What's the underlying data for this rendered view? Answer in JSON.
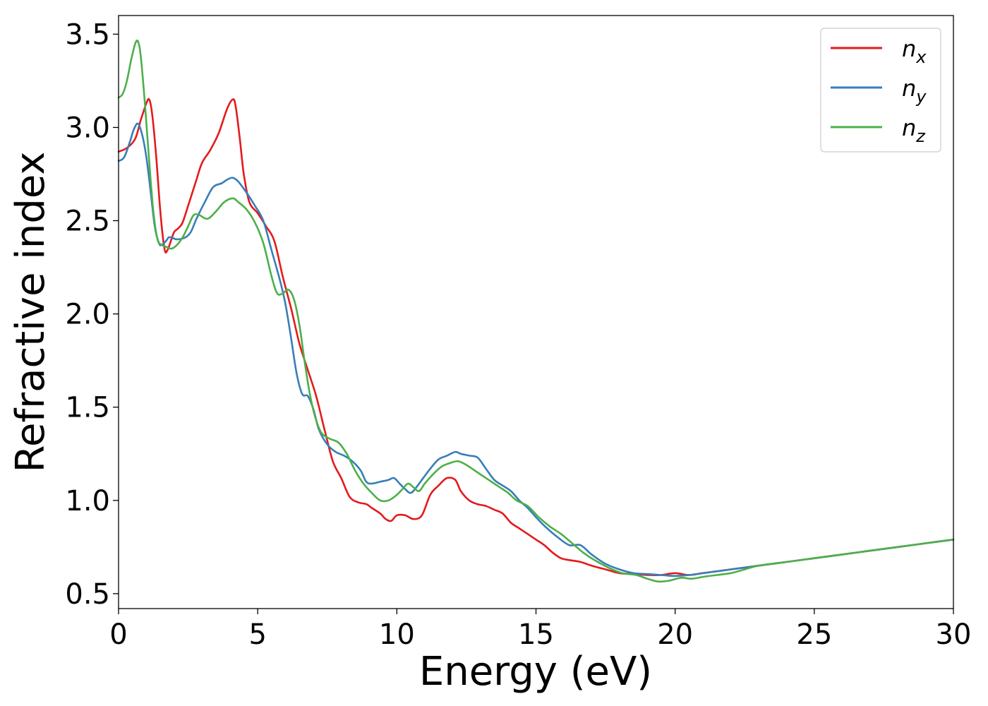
{
  "chart_data": {
    "type": "line",
    "xlabel": "Energy (eV)",
    "ylabel": "Refractive index",
    "xlim": [
      0,
      30
    ],
    "ylim": [
      0.42,
      3.6
    ],
    "grid": false,
    "legend_position": "top-right",
    "x_ticks": [
      "0",
      "5",
      "10",
      "15",
      "20",
      "25",
      "30"
    ],
    "y_ticks": [
      "0.5",
      "1.0",
      "1.5",
      "2.0",
      "2.5",
      "3.0",
      "3.5"
    ],
    "series": [
      {
        "name": "n_x",
        "label_base": "n",
        "label_sub": "x",
        "color": "#e41a1c",
        "x": [
          0,
          0.3,
          0.6,
          0.8,
          1.0,
          1.1,
          1.2,
          1.35,
          1.5,
          1.65,
          1.75,
          1.9,
          2.0,
          2.15,
          2.3,
          2.5,
          2.8,
          3.0,
          3.3,
          3.6,
          3.9,
          4.1,
          4.2,
          4.35,
          4.5,
          4.7,
          5.0,
          5.3,
          5.6,
          5.9,
          6.2,
          6.5,
          6.8,
          7.1,
          7.4,
          7.7,
          8.0,
          8.3,
          8.6,
          8.9,
          9.1,
          9.4,
          9.6,
          9.8,
          10.0,
          10.3,
          10.6,
          10.9,
          11.2,
          11.5,
          11.8,
          12.1,
          12.3,
          12.6,
          12.9,
          13.2,
          13.5,
          13.8,
          14.1,
          14.4,
          14.7,
          15.0,
          15.3,
          15.6,
          15.9,
          16.2,
          16.6,
          17.0,
          17.5,
          18.0,
          18.5,
          19.0,
          19.5,
          20.0,
          20.5,
          21.0,
          21.5,
          22.0,
          22.5,
          23.0,
          24.0,
          25.0,
          26.0,
          27.0,
          28.0,
          29.0,
          30.0
        ],
        "y": [
          2.87,
          2.89,
          2.94,
          3.04,
          3.13,
          3.15,
          3.08,
          2.85,
          2.55,
          2.35,
          2.34,
          2.4,
          2.44,
          2.46,
          2.49,
          2.58,
          2.72,
          2.81,
          2.88,
          2.97,
          3.1,
          3.15,
          3.12,
          2.95,
          2.75,
          2.6,
          2.54,
          2.47,
          2.39,
          2.2,
          2.03,
          1.84,
          1.7,
          1.56,
          1.38,
          1.21,
          1.12,
          1.02,
          0.99,
          0.98,
          0.96,
          0.93,
          0.9,
          0.89,
          0.92,
          0.92,
          0.9,
          0.92,
          1.03,
          1.08,
          1.12,
          1.11,
          1.05,
          1.0,
          0.98,
          0.97,
          0.95,
          0.93,
          0.88,
          0.85,
          0.82,
          0.79,
          0.76,
          0.72,
          0.69,
          0.68,
          0.67,
          0.65,
          0.63,
          0.61,
          0.605,
          0.6,
          0.6,
          0.61,
          0.6,
          0.61,
          0.62,
          0.63,
          0.64,
          0.65,
          0.67,
          0.69,
          0.71,
          0.73,
          0.75,
          0.77,
          0.79
        ]
      },
      {
        "name": "n_y",
        "label_base": "n",
        "label_sub": "y",
        "color": "#377eb8",
        "x": [
          0,
          0.2,
          0.4,
          0.55,
          0.7,
          0.85,
          1.0,
          1.15,
          1.3,
          1.45,
          1.55,
          1.7,
          1.8,
          1.9,
          2.1,
          2.4,
          2.6,
          2.8,
          3.1,
          3.4,
          3.7,
          3.9,
          4.1,
          4.3,
          4.6,
          4.9,
          5.2,
          5.5,
          5.8,
          6.0,
          6.2,
          6.4,
          6.6,
          6.8,
          7.0,
          7.2,
          7.5,
          7.8,
          8.1,
          8.4,
          8.7,
          8.9,
          9.1,
          9.4,
          9.7,
          9.9,
          10.1,
          10.3,
          10.5,
          10.7,
          10.9,
          11.2,
          11.5,
          11.8,
          12.1,
          12.3,
          12.6,
          12.9,
          13.2,
          13.5,
          13.8,
          14.1,
          14.4,
          14.7,
          15.0,
          15.4,
          15.8,
          16.2,
          16.6,
          17.0,
          17.5,
          18.0,
          18.5,
          19.0,
          19.5,
          20.0,
          20.5,
          21.0,
          21.5,
          22.0,
          22.5,
          23.0,
          24.0,
          25.0,
          26.0,
          27.0,
          28.0,
          29.0,
          30.0
        ],
        "y": [
          2.82,
          2.84,
          2.92,
          2.99,
          3.02,
          2.96,
          2.84,
          2.66,
          2.47,
          2.38,
          2.37,
          2.39,
          2.41,
          2.41,
          2.4,
          2.41,
          2.44,
          2.51,
          2.6,
          2.68,
          2.7,
          2.72,
          2.73,
          2.71,
          2.65,
          2.58,
          2.5,
          2.34,
          2.18,
          2.05,
          1.87,
          1.68,
          1.57,
          1.56,
          1.49,
          1.38,
          1.3,
          1.26,
          1.24,
          1.21,
          1.16,
          1.1,
          1.09,
          1.1,
          1.11,
          1.12,
          1.09,
          1.06,
          1.04,
          1.07,
          1.11,
          1.17,
          1.22,
          1.24,
          1.26,
          1.25,
          1.24,
          1.23,
          1.17,
          1.11,
          1.08,
          1.05,
          1.0,
          0.96,
          0.91,
          0.85,
          0.8,
          0.76,
          0.76,
          0.71,
          0.66,
          0.63,
          0.61,
          0.605,
          0.6,
          0.595,
          0.6,
          0.61,
          0.62,
          0.63,
          0.64,
          0.65,
          0.67,
          0.69,
          0.71,
          0.73,
          0.75,
          0.77,
          0.79
        ]
      },
      {
        "name": "n_z",
        "label_base": "n",
        "label_sub": "z",
        "color": "#4daf4a",
        "x": [
          0,
          0.15,
          0.3,
          0.45,
          0.6,
          0.7,
          0.8,
          0.95,
          1.1,
          1.25,
          1.4,
          1.55,
          1.7,
          1.9,
          2.1,
          2.3,
          2.5,
          2.7,
          2.9,
          3.2,
          3.5,
          3.8,
          4.1,
          4.3,
          4.6,
          4.9,
          5.2,
          5.5,
          5.7,
          5.9,
          6.1,
          6.3,
          6.5,
          6.7,
          6.9,
          7.1,
          7.3,
          7.6,
          7.9,
          8.2,
          8.5,
          8.8,
          9.1,
          9.4,
          9.7,
          10.0,
          10.2,
          10.4,
          10.6,
          10.8,
          11.0,
          11.3,
          11.6,
          11.9,
          12.2,
          12.5,
          12.8,
          13.1,
          13.4,
          13.7,
          14.0,
          14.3,
          14.7,
          15.1,
          15.5,
          15.9,
          16.3,
          16.7,
          17.1,
          17.6,
          18.1,
          18.6,
          19.0,
          19.4,
          19.8,
          20.2,
          20.6,
          21.0,
          21.5,
          22.0,
          22.5,
          23.0,
          24.0,
          25.0,
          26.0,
          27.0,
          28.0,
          29.0,
          30.0
        ],
        "y": [
          3.16,
          3.18,
          3.25,
          3.36,
          3.45,
          3.46,
          3.38,
          3.12,
          2.82,
          2.55,
          2.4,
          2.37,
          2.36,
          2.35,
          2.37,
          2.41,
          2.47,
          2.53,
          2.53,
          2.51,
          2.55,
          2.6,
          2.62,
          2.6,
          2.56,
          2.49,
          2.38,
          2.2,
          2.11,
          2.11,
          2.13,
          2.08,
          1.94,
          1.73,
          1.55,
          1.43,
          1.36,
          1.33,
          1.31,
          1.25,
          1.16,
          1.09,
          1.04,
          1.0,
          1.0,
          1.03,
          1.06,
          1.09,
          1.07,
          1.05,
          1.09,
          1.14,
          1.18,
          1.2,
          1.21,
          1.19,
          1.16,
          1.13,
          1.1,
          1.07,
          1.04,
          1.0,
          0.97,
          0.91,
          0.86,
          0.82,
          0.77,
          0.72,
          0.68,
          0.64,
          0.61,
          0.6,
          0.58,
          0.565,
          0.57,
          0.585,
          0.58,
          0.59,
          0.6,
          0.61,
          0.63,
          0.65,
          0.67,
          0.69,
          0.71,
          0.73,
          0.75,
          0.77,
          0.79
        ]
      }
    ]
  }
}
